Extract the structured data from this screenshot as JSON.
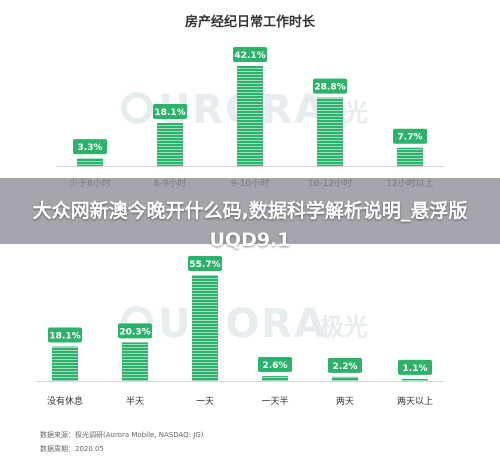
{
  "banner": {
    "text": "大众网新澳今晚开什么码,数据科学解析说明_悬浮版UQD9.1"
  },
  "watermark": {
    "text": "URORA",
    "cn": "极光"
  },
  "source": {
    "line1": "数据来源：极光调研(Aurora Mobile, NASDAQ: JG)",
    "line2": "数据周期：2020.05"
  },
  "colors": {
    "bar": "#2cb26a",
    "label_bg": "#2cb26a"
  },
  "chart_data": [
    {
      "type": "bar",
      "title": "房产经纪日常工作时长",
      "categories": [
        "少于8小时",
        "8-9小时",
        "9-10小时",
        "10-12小时",
        "12小时以上"
      ],
      "values": [
        3.3,
        18.1,
        42.1,
        28.8,
        7.7
      ],
      "labels": [
        "3.3%",
        "18.1%",
        "42.1%",
        "28.8%",
        "7.7%"
      ],
      "ylim": [
        0,
        42.1
      ]
    },
    {
      "type": "bar",
      "title": "",
      "categories": [
        "没有休息",
        "半天",
        "一天",
        "一天半",
        "两天",
        "两天以上"
      ],
      "values": [
        18.1,
        20.3,
        55.7,
        2.6,
        2.2,
        1.1
      ],
      "labels": [
        "18.1%",
        "20.3%",
        "55.7%",
        "2.6%",
        "2.2%",
        "1.1%"
      ],
      "ylim": [
        0,
        55.7
      ]
    }
  ]
}
